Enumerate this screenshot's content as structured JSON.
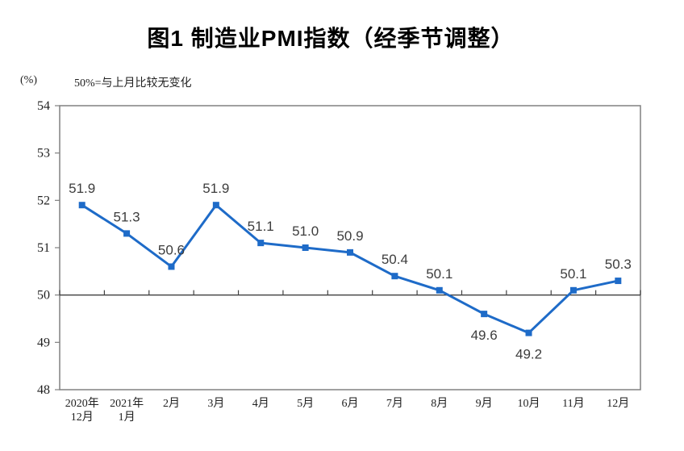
{
  "chart_data": {
    "type": "line",
    "title": "图1 制造业PMI指数（经季节调整）",
    "unit_label": "(%)",
    "annotation": "50%=与上月比较无变化",
    "categories": [
      "2020年\n12月",
      "2021年\n1月",
      "2月",
      "3月",
      "4月",
      "5月",
      "6月",
      "7月",
      "8月",
      "9月",
      "10月",
      "11月",
      "12月"
    ],
    "series": [
      {
        "name": "制造业PMI",
        "values": [
          51.9,
          51.3,
          50.6,
          51.9,
          51.1,
          51.0,
          50.9,
          50.4,
          50.1,
          49.6,
          49.2,
          50.1,
          50.3
        ]
      }
    ],
    "ylim": [
      48,
      54
    ],
    "y_ticks": [
      54,
      53,
      52,
      51,
      50,
      49,
      48
    ],
    "reference_line_y": 50,
    "label_below_indices": [
      9,
      10
    ],
    "value_decimals": 1,
    "grid": "off",
    "legend": "none",
    "colors": {
      "line": "#1E6BC8",
      "data_label": "#3D3D3D",
      "axis_text": "#1F1F1F",
      "plot_border": "#808080",
      "reference_line": "#404040",
      "background": "#FFFFFF"
    }
  }
}
